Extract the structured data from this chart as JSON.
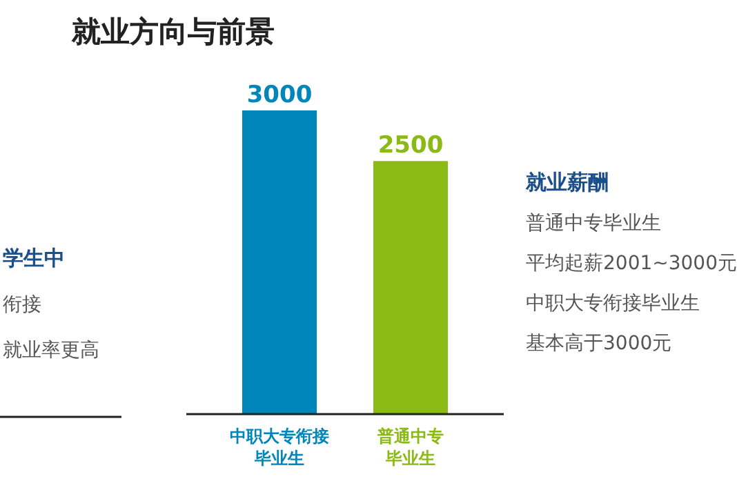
{
  "chart_data": {
    "type": "bar",
    "title": "就业方向与前景",
    "categories": [
      "中职大专衔接毕业生",
      "普通中专毕业生"
    ],
    "values": [
      3000,
      2500
    ],
    "colors": [
      "#0086b9",
      "#8bb915"
    ],
    "data_labels": true,
    "annotations": [
      "学生中",
      "衔接",
      "就业率更高",
      "就业薪酬",
      "普通中专毕业生",
      "平均起薪2001~3000元",
      "中职大专衔接毕业生",
      "基本高于3000元"
    ]
  }
}
